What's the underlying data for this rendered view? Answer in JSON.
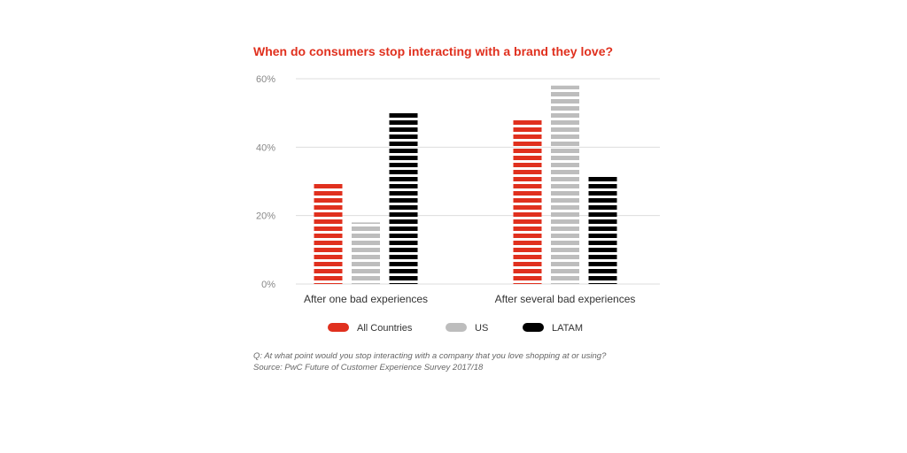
{
  "title": "When do consumers stop interacting with a brand they love?",
  "footnote": {
    "question": "Q: At what point would you stop interacting with a company that you love shopping at or using?",
    "source": "Source: PwC Future of Customer Experience Survey 2017/18"
  },
  "chart_data": {
    "type": "bar",
    "title": "When do consumers stop interacting with a brand they love?",
    "categories": [
      "After one bad experiences",
      "After several bad experiences"
    ],
    "series": [
      {
        "name": "All Countries",
        "color": "#e0301e",
        "values": [
          30,
          48
        ]
      },
      {
        "name": "US",
        "color": "#bdbdbd",
        "values": [
          18,
          58
        ]
      },
      {
        "name": "LATAM",
        "color": "#000000",
        "values": [
          50,
          32
        ]
      }
    ],
    "ylim": [
      0,
      60
    ],
    "yticks": [
      "0%",
      "20%",
      "40%",
      "60%"
    ],
    "ytick_values": [
      0,
      20,
      40,
      60
    ],
    "grid": true,
    "legend_position": "bottom"
  }
}
